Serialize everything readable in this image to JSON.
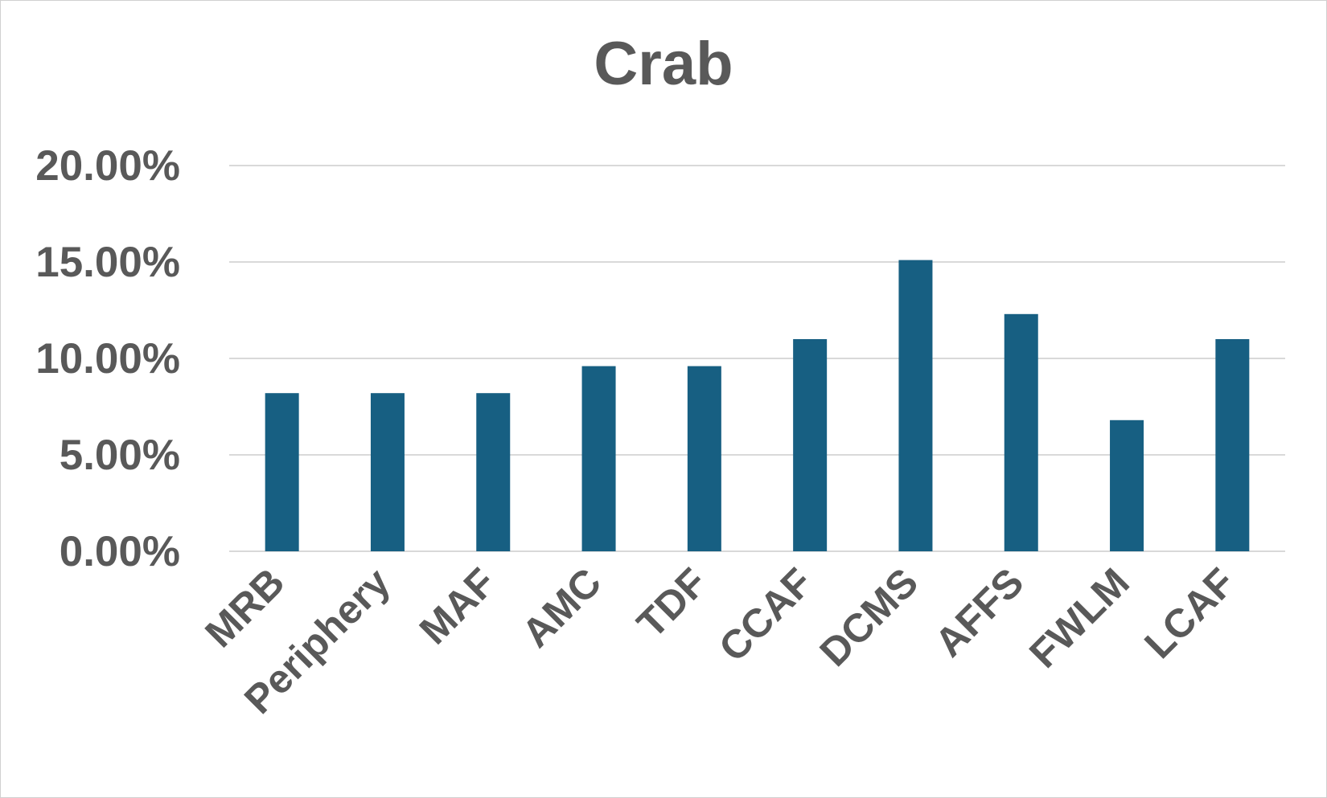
{
  "chart_data": {
    "type": "bar",
    "title": "Crab",
    "xlabel": "",
    "ylabel": "",
    "categories": [
      "MRB",
      "Periphery",
      "MAF",
      "AMC",
      "TDF",
      "CCAF",
      "DCMS",
      "AFFS",
      "FWLM",
      "LCAF"
    ],
    "values": [
      8.2,
      8.2,
      8.2,
      9.6,
      9.6,
      11.0,
      15.1,
      12.3,
      6.8,
      11.0
    ],
    "value_format": "percent",
    "ylim": [
      0,
      20
    ],
    "yticks": [
      "0.00%",
      "5.00%",
      "10.00%",
      "15.00%",
      "20.00%"
    ],
    "ytick_values": [
      0,
      5,
      10,
      15,
      20
    ],
    "grid": true,
    "legend": "none",
    "colors": {
      "bar": "#175F82",
      "grid": "#d9d9d9",
      "text": "#595959"
    }
  }
}
